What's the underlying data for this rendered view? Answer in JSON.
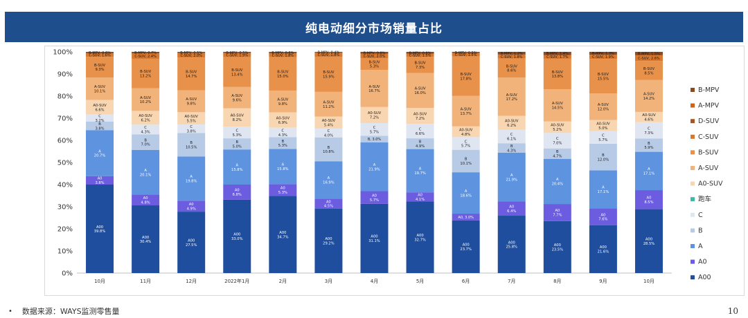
{
  "title": "纯电动细分市场销量占比",
  "source_note": "数据来源：WAYS监测零售量",
  "source_bullet": "•",
  "page_number": "10",
  "chart_data": {
    "type": "bar",
    "stacked": true,
    "normalized_percent": true,
    "title": "纯电动细分市场销量占比",
    "xlabel": "",
    "ylabel": "",
    "ylim": [
      0,
      100
    ],
    "yticks": [
      "0%",
      "10%",
      "20%",
      "30%",
      "40%",
      "50%",
      "60%",
      "70%",
      "80%",
      "90%",
      "100%"
    ],
    "categories": [
      "10月",
      "11月",
      "12月",
      "2022年1月",
      "2月",
      "3月",
      "4月",
      "5月",
      "6月",
      "7月",
      "8月",
      "9月",
      "10月"
    ],
    "legend_position": "right",
    "series": [
      {
        "name": "A00",
        "color": "#1f4e9e",
        "labelColor": "#ffffff",
        "values": [
          39.8,
          30.4,
          27.5,
          33.0,
          34.7,
          29.2,
          31.1,
          32.7,
          23.7,
          25.8,
          23.5,
          21.6,
          28.5
        ]
      },
      {
        "name": "A0",
        "color": "#6b5ce0",
        "labelColor": "#ffffff",
        "values": [
          3.8,
          4.8,
          4.9,
          6.8,
          5.3,
          4.5,
          5.7,
          4.1,
          3.0,
          6.4,
          7.7,
          7.6,
          8.5
        ]
      },
      {
        "name": "A",
        "color": "#5e93e0",
        "labelColor": "#ffffff",
        "values": [
          20.7,
          20.1,
          19.8,
          15.8,
          15.8,
          16.9,
          21.9,
          19.7,
          18.6,
          21.9,
          20.4,
          17.1,
          17.1
        ]
      },
      {
        "name": "B",
        "color": "#b8cbe6",
        "labelColor": "#1a1a1a",
        "values": [
          3.8,
          7.0,
          10.5,
          5.0,
          5.3,
          10.8,
          3.0,
          4.9,
          10.1,
          4.3,
          4.7,
          12.0,
          5.9
        ]
      },
      {
        "name": "C",
        "color": "#dfe6f1",
        "labelColor": "#1a1a1a",
        "values": [
          3.2,
          4.3,
          3.8,
          5.3,
          4.3,
          4.0,
          5.7,
          6.6,
          5.7,
          6.1,
          7.0,
          5.7,
          7.3
        ]
      },
      {
        "name": "跑车",
        "color": "#3fb8a8",
        "labelColor": "#1a1a1a",
        "values": [
          0,
          0,
          0,
          0,
          0,
          0,
          0,
          0,
          0,
          0,
          0,
          0,
          0
        ]
      },
      {
        "name": "A0-SUV",
        "color": "#f8d6b2",
        "labelColor": "#1a1a1a",
        "values": [
          6.6,
          6.2,
          5.5,
          8.2,
          6.9,
          5.4,
          7.2,
          7.2,
          4.8,
          6.2,
          5.2,
          5.0,
          4.6
        ]
      },
      {
        "name": "A-SUV",
        "color": "#f2b37a",
        "labelColor": "#1a1a1a",
        "values": [
          10.1,
          10.2,
          9.8,
          9.6,
          9.8,
          11.2,
          16.7,
          16.0,
          13.7,
          17.2,
          14.5,
          12.0,
          14.2
        ]
      },
      {
        "name": "B-SUV",
        "color": "#e8914a",
        "labelColor": "#1a1a1a",
        "values": [
          9.3,
          13.2,
          14.7,
          13.4,
          15.0,
          15.9,
          5.3,
          7.3,
          17.8,
          8.6,
          13.8,
          15.5,
          8.5
        ]
      },
      {
        "name": "C-SUV",
        "color": "#d9772c",
        "labelColor": "#1a1a1a",
        "values": [
          1.6,
          2.4,
          2.0,
          1.9,
          1.8,
          1.8,
          2.0,
          1.5,
          1.5,
          1.8,
          1.7,
          1.9,
          2.6
        ]
      },
      {
        "name": "D-SUV",
        "color": "#a8561f",
        "labelColor": "#1a1a1a",
        "values": [
          0,
          0,
          0,
          0,
          0,
          0,
          0,
          0,
          0,
          0,
          0,
          0,
          0
        ]
      },
      {
        "name": "A-MPV",
        "color": "#c8641f",
        "labelColor": "#1a1a1a",
        "values": [
          0,
          0,
          0,
          0,
          0,
          0,
          0,
          0,
          0,
          0,
          0,
          0,
          0
        ]
      },
      {
        "name": "B-MPV",
        "color": "#8b4a1f",
        "labelColor": "#1a1a1a",
        "values": [
          0.6,
          0.7,
          0.5,
          0.5,
          0.6,
          0.4,
          0.8,
          0.8,
          0.5,
          1.2,
          1.4,
          1.3,
          1.5
        ]
      }
    ],
    "legend_order": [
      "B-MPV",
      "A-MPV",
      "D-SUV",
      "C-SUV",
      "B-SUV",
      "A-SUV",
      "A0-SUV",
      "跑车",
      "C",
      "B",
      "A",
      "A0",
      "A00"
    ]
  }
}
